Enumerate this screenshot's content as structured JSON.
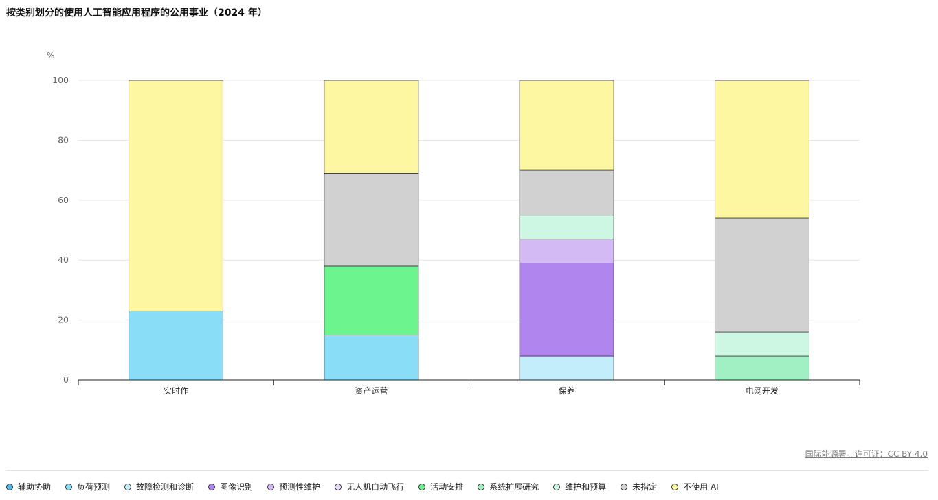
{
  "title": "按类别划分的使用人工智能应用程序的公用事业（2024 年）",
  "source": "国际能源署。许可证：CC BY 4.0",
  "chart_data": {
    "type": "bar",
    "stacked": true,
    "ylabel": "%",
    "ylim": [
      0,
      100
    ],
    "yticks": [
      0,
      20,
      40,
      60,
      80,
      100
    ],
    "grid": true,
    "legend_position": "bottom",
    "categories": [
      "实时作",
      "资产运营",
      "保养",
      "电网开发"
    ],
    "series": [
      {
        "name": "辅助协助",
        "color": "#4cb9e8",
        "values": [
          0,
          0,
          0,
          0
        ]
      },
      {
        "name": "负荷预测",
        "color": "#89ddf7",
        "values": [
          23,
          15,
          0,
          0
        ]
      },
      {
        "name": "故障检测和诊断",
        "color": "#c4edfb",
        "values": [
          0,
          0,
          8,
          0
        ]
      },
      {
        "name": "图像识别",
        "color": "#b085ed",
        "values": [
          0,
          0,
          31,
          0
        ]
      },
      {
        "name": "预测性维护",
        "color": "#d3baf4",
        "values": [
          0,
          0,
          8,
          0
        ]
      },
      {
        "name": "无人机自动飞行",
        "color": "#e6dafb",
        "values": [
          0,
          0,
          0,
          0
        ]
      },
      {
        "name": "活动安排",
        "color": "#6cf58f",
        "values": [
          0,
          23,
          0,
          0
        ]
      },
      {
        "name": "系统扩展研究",
        "color": "#a0f0c4",
        "values": [
          0,
          0,
          0,
          8
        ]
      },
      {
        "name": "维护和预算",
        "color": "#cdf7e3",
        "values": [
          0,
          0,
          8,
          8
        ]
      },
      {
        "name": "未指定",
        "color": "#d1d1d1",
        "values": [
          0,
          31,
          15,
          38
        ]
      },
      {
        "name": "不使用 AI",
        "color": "#fdf7a1",
        "values": [
          77,
          31,
          30,
          46
        ]
      }
    ]
  }
}
